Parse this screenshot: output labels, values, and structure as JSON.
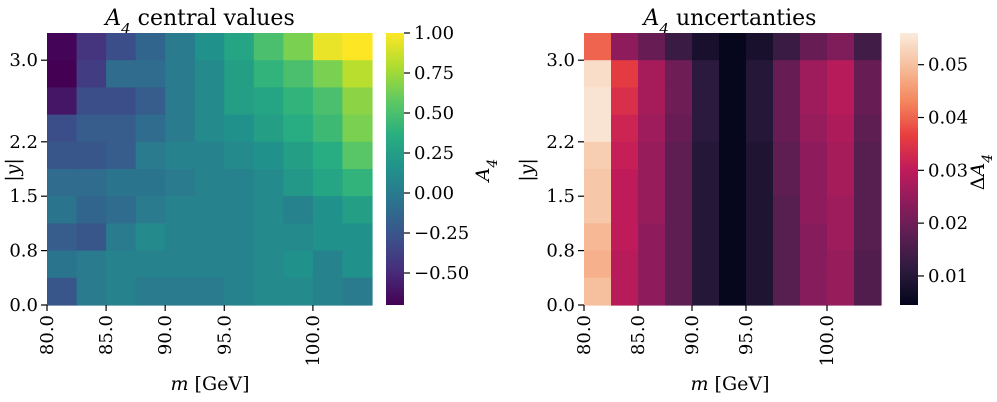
{
  "chart_data": [
    {
      "type": "heatmap",
      "title": "A₄ central values",
      "title_symbol": "A",
      "title_subscript": "4",
      "title_text": " central values",
      "xlabel": "m [GeV]",
      "xlabel_symbol": "m",
      "xlabel_text": " [GeV]",
      "ylabel": "|y|",
      "x_tick_labels": [
        "80.0",
        "85.0",
        "90.0",
        "95.0",
        "100.0"
      ],
      "x_tick_columns": [
        0,
        2,
        4,
        6,
        9
      ],
      "y_tick_labels": [
        "0.0",
        "0.8",
        "1.5",
        "2.2",
        "3.0"
      ],
      "y_tick_rows": [
        0,
        2,
        4,
        6,
        9
      ],
      "n_columns": 11,
      "n_rows": 10,
      "colormap": "viridis",
      "vmin": -0.7,
      "vmax": 1.0,
      "colorbar_label": "A₄",
      "colorbar_symbol": "A",
      "colorbar_subscript": "4",
      "colorbar_ticks": [
        1.0,
        0.75,
        0.5,
        0.25,
        0.0,
        -0.25,
        -0.5
      ],
      "colorbar_tick_labels": [
        "1.00",
        "0.75",
        "0.50",
        "0.25",
        "0.00",
        "−0.25",
        "−0.50"
      ],
      "values_row_order": "top_to_bottom",
      "values": [
        [
          -0.68,
          -0.45,
          -0.3,
          -0.15,
          0.0,
          0.15,
          0.3,
          0.5,
          0.65,
          0.95,
          1.0
        ],
        [
          -0.7,
          -0.4,
          -0.1,
          -0.1,
          0.0,
          0.1,
          0.25,
          0.4,
          0.5,
          0.65,
          0.82
        ],
        [
          -0.6,
          -0.3,
          -0.3,
          -0.2,
          0.0,
          0.1,
          0.25,
          0.3,
          0.4,
          0.5,
          0.7
        ],
        [
          -0.3,
          -0.2,
          -0.2,
          -0.1,
          0.0,
          0.1,
          0.15,
          0.25,
          0.35,
          0.45,
          0.65
        ],
        [
          -0.25,
          -0.25,
          -0.2,
          0.0,
          0.05,
          0.05,
          0.1,
          0.15,
          0.25,
          0.35,
          0.55
        ],
        [
          -0.1,
          -0.1,
          -0.05,
          -0.05,
          0.0,
          0.05,
          0.05,
          0.1,
          0.2,
          0.3,
          0.4
        ],
        [
          -0.05,
          -0.15,
          -0.1,
          0.0,
          0.05,
          0.05,
          0.05,
          0.1,
          0.05,
          0.15,
          0.25
        ],
        [
          -0.2,
          -0.25,
          0.0,
          0.1,
          0.05,
          0.05,
          0.05,
          0.1,
          0.1,
          0.15,
          0.15
        ],
        [
          -0.05,
          0.0,
          0.05,
          0.05,
          0.05,
          0.05,
          0.05,
          0.1,
          0.15,
          0.05,
          0.15
        ],
        [
          -0.25,
          0.0,
          0.05,
          0.0,
          0.0,
          0.0,
          0.05,
          0.1,
          0.1,
          0.05,
          0.0
        ]
      ]
    },
    {
      "type": "heatmap",
      "title": "A₄ uncertanties",
      "title_symbol": "A",
      "title_subscript": "4",
      "title_text": " uncertanties",
      "xlabel": "m [GeV]",
      "xlabel_symbol": "m",
      "xlabel_text": " [GeV]",
      "ylabel": "|y|",
      "x_tick_labels": [
        "80.0",
        "85.0",
        "90.0",
        "95.0",
        "100.0"
      ],
      "x_tick_columns": [
        0,
        2,
        4,
        6,
        9
      ],
      "y_tick_labels": [
        "0.0",
        "0.8",
        "1.5",
        "2.2",
        "3.0"
      ],
      "y_tick_rows": [
        0,
        2,
        4,
        6,
        9
      ],
      "n_columns": 11,
      "n_rows": 10,
      "colormap": "rocket",
      "vmin": 0.0045,
      "vmax": 0.056,
      "colorbar_label": "ΔA₄",
      "colorbar_prefix": "Δ",
      "colorbar_symbol": "A",
      "colorbar_subscript": "4",
      "colorbar_ticks": [
        0.05,
        0.04,
        0.03,
        0.02,
        0.01
      ],
      "colorbar_tick_labels": [
        "0.05",
        "0.04",
        "0.03",
        "0.02",
        "0.01"
      ],
      "values_row_order": "top_to_bottom",
      "values": [
        [
          0.04,
          0.024,
          0.019,
          0.013,
          0.008,
          0.005,
          0.008,
          0.013,
          0.019,
          0.022,
          0.014
        ],
        [
          0.054,
          0.036,
          0.027,
          0.02,
          0.011,
          0.005,
          0.01,
          0.019,
          0.026,
          0.029,
          0.019
        ],
        [
          0.055,
          0.034,
          0.027,
          0.02,
          0.011,
          0.005,
          0.01,
          0.019,
          0.026,
          0.029,
          0.019
        ],
        [
          0.055,
          0.032,
          0.026,
          0.019,
          0.011,
          0.005,
          0.01,
          0.019,
          0.025,
          0.028,
          0.018
        ],
        [
          0.052,
          0.031,
          0.025,
          0.018,
          0.01,
          0.005,
          0.009,
          0.018,
          0.024,
          0.027,
          0.017
        ],
        [
          0.051,
          0.03,
          0.025,
          0.018,
          0.01,
          0.005,
          0.009,
          0.018,
          0.024,
          0.027,
          0.017
        ],
        [
          0.051,
          0.03,
          0.025,
          0.018,
          0.01,
          0.005,
          0.009,
          0.017,
          0.024,
          0.026,
          0.017
        ],
        [
          0.049,
          0.03,
          0.024,
          0.018,
          0.01,
          0.005,
          0.009,
          0.017,
          0.023,
          0.026,
          0.017
        ],
        [
          0.048,
          0.029,
          0.024,
          0.018,
          0.01,
          0.005,
          0.009,
          0.017,
          0.023,
          0.025,
          0.016
        ],
        [
          0.05,
          0.029,
          0.024,
          0.018,
          0.01,
          0.005,
          0.009,
          0.017,
          0.023,
          0.025,
          0.016
        ]
      ]
    }
  ]
}
